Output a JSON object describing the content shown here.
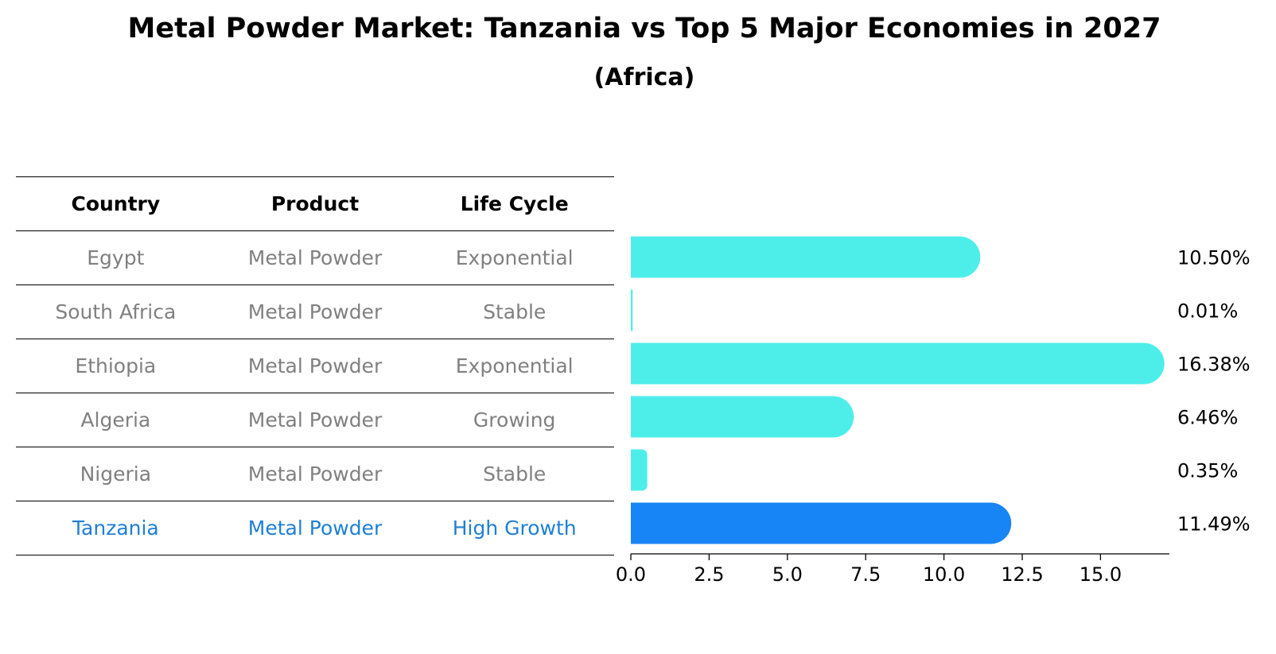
{
  "title": "Metal Powder Market: Tanzania vs Top 5 Major Economies in 2027",
  "subtitle": "(Africa)",
  "table": {
    "headers": [
      "Country",
      "Product",
      "Life Cycle"
    ],
    "rows": [
      [
        "Egypt",
        "Metal Powder",
        "Exponential"
      ],
      [
        "South Africa",
        "Metal Powder",
        "Stable"
      ],
      [
        "Ethiopia",
        "Metal Powder",
        "Exponential"
      ],
      [
        "Algeria",
        "Metal Powder",
        "Growing"
      ],
      [
        "Nigeria",
        "Metal Powder",
        "Stable"
      ],
      [
        "Tanzania",
        "Metal Powder",
        "High Growth"
      ]
    ]
  },
  "chart_data": {
    "type": "bar",
    "orientation": "horizontal",
    "categories": [
      "Egypt",
      "South Africa",
      "Ethiopia",
      "Algeria",
      "Nigeria",
      "Tanzania"
    ],
    "values": [
      10.5,
      0.01,
      16.38,
      6.46,
      0.35,
      11.49
    ],
    "value_labels": [
      "10.50%",
      "0.01%",
      "16.38%",
      "6.46%",
      "0.35%",
      "11.49%"
    ],
    "highlight": "Tanzania",
    "xlim": [
      0,
      17.2
    ],
    "xticks": [
      0.0,
      2.5,
      5.0,
      7.5,
      10.0,
      12.5,
      15.0
    ],
    "xtick_labels": [
      "0.0",
      "2.5",
      "5.0",
      "7.5",
      "10.0",
      "12.5",
      "15.0"
    ],
    "colors": {
      "default": "#4deeea",
      "highlight": "#1785f5"
    }
  }
}
